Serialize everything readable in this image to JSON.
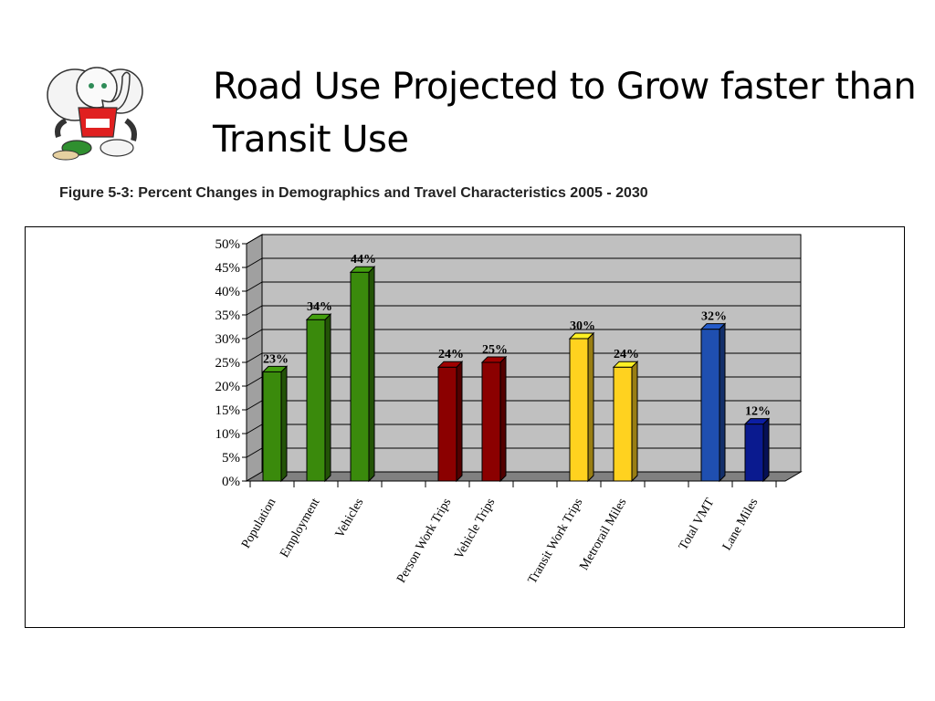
{
  "slide": {
    "title": "Road Use Projected to Grow faster than Transit Use",
    "figure_caption": "Figure 5-3: Percent Changes in Demographics and Travel Characteristics 2005 - 2030",
    "mascot_icon": "elephant-mascot-icon"
  },
  "chart_data": {
    "type": "bar",
    "title": "",
    "xlabel": "",
    "ylabel": "",
    "ylim": [
      0,
      50
    ],
    "ytick_step": 5,
    "ytick_suffix": "%",
    "grid": true,
    "legend": "none",
    "categories": [
      "Population",
      "Employment",
      "Vehicles",
      "Person Work Trips",
      "Vehicle Trips",
      "Transit Work Trips",
      "Metrorail Miles",
      "Total VMT",
      "Lane Miles"
    ],
    "values": [
      23,
      34,
      44,
      24,
      25,
      30,
      24,
      32,
      12
    ],
    "data_labels": [
      "23%",
      "34%",
      "44%",
      "24%",
      "25%",
      "30%",
      "24%",
      "32%",
      "12%"
    ],
    "colors": [
      "#3a8a0c",
      "#3a8a0c",
      "#3a8a0c",
      "#8b0000",
      "#8b0000",
      "#ffd21f",
      "#ffd21f",
      "#1f4fb0",
      "#0a1a8f"
    ],
    "plot_background": "#c0c0c0"
  }
}
